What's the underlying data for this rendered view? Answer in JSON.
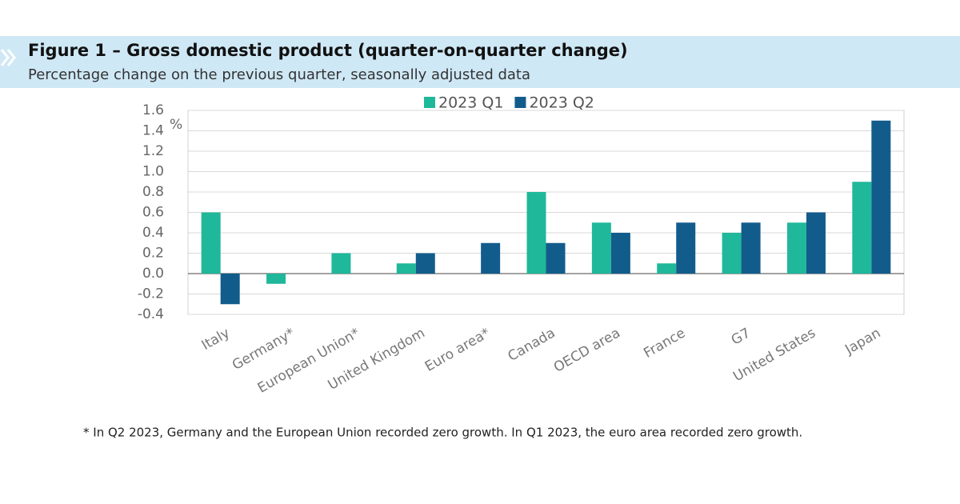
{
  "chart_data": {
    "type": "bar",
    "title": "Figure 1 – Gross domestic product (quarter-on-quarter change)",
    "subtitle": "Percentage change on the previous quarter, seasonally adjusted data",
    "y_label": "%",
    "categories": [
      "Italy",
      "Germany*",
      "European Union*",
      "United Kingdom",
      "Euro area*",
      "Canada",
      "OECD area",
      "France",
      "G7",
      "United States",
      "Japan"
    ],
    "series": [
      {
        "name": "2023 Q1",
        "color": "#1fb89a",
        "values": [
          0.6,
          -0.1,
          0.2,
          0.1,
          0,
          0.8,
          0.5,
          0.1,
          0.4,
          0.5,
          0.9
        ]
      },
      {
        "name": "2023 Q2",
        "color": "#125c8c",
        "values": [
          -0.3,
          0,
          0,
          0.2,
          0.3,
          0.3,
          0.4,
          0.5,
          0.5,
          0.6,
          1.5
        ]
      }
    ],
    "ylim": [
      -0.4,
      1.6
    ],
    "yticks": [
      -0.4,
      -0.2,
      {
        "value": 0,
        "label": "0.0"
      },
      0.2,
      0.4,
      0.6,
      0.8,
      {
        "value": 1,
        "label": "1.0"
      },
      1.2,
      1.4,
      1.6
    ],
    "grid": true,
    "legend": "top",
    "footnote": "* In Q2 2023, Germany and the European Union recorded zero growth. In Q1 2023, the euro area recorded zero growth."
  }
}
